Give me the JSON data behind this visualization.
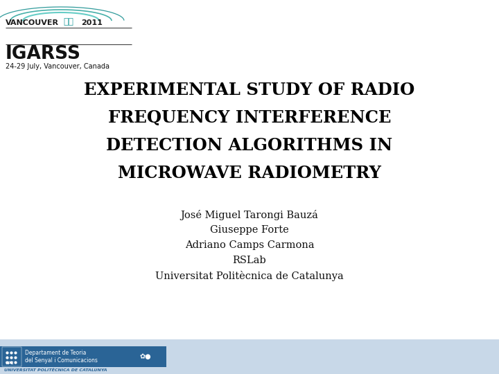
{
  "title_lines": [
    "EXPERIMENTAL STUDY OF RADIO",
    "FREQUENCY INTERFERENCE",
    "DETECTION ALGORITHMS IN",
    "MICROWAVE RADIOMETRY"
  ],
  "authors": [
    "José Miguel Tarongi Bauzá",
    "Giuseppe Forte",
    "Adriano Camps Carmona",
    "RSLab",
    "Universitat Politècnica de Catalunya"
  ],
  "bg_color": "#ffffff",
  "title_color": "#000000",
  "author_color": "#111111",
  "footer_bg": "#c8d8e8",
  "footer_bar_bg": "#2a6496",
  "footer_text": "UNIVERSITAT POLITÈCNICA DE CATALUNYA",
  "footer_dept1": "Departament de Teoria",
  "footer_dept2": "del Senyal i Comunicacions",
  "vancouver_text": "VANCOUVER",
  "chinese_chars": "仙台",
  "year_text": "2011",
  "igarss_text": "IGARSS",
  "date_text": "24-29 July, Vancouver, Canada",
  "arc_colors": [
    "#55c8c0",
    "#33a8a0",
    "#1a9090"
  ],
  "fig_width": 7.2,
  "fig_height": 5.4,
  "dpi": 100
}
